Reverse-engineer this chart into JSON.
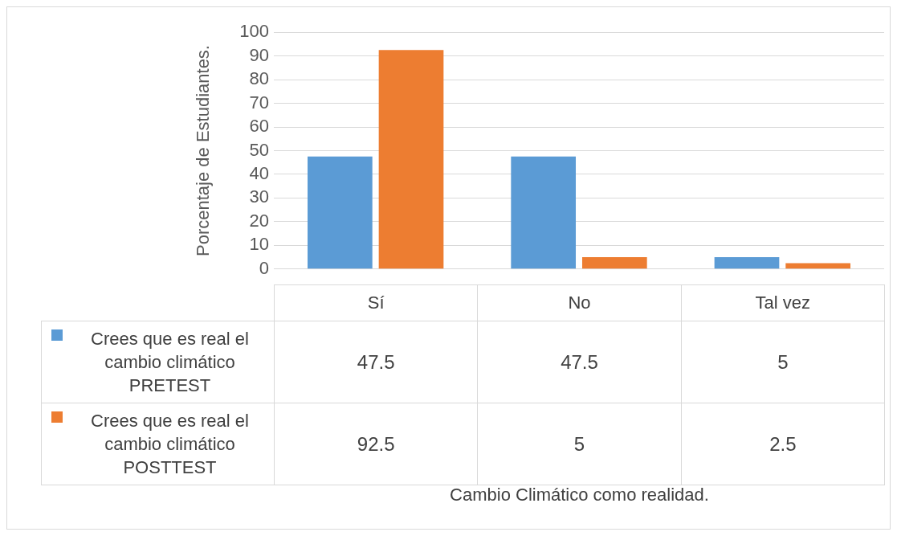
{
  "chart_data": {
    "type": "bar",
    "annotations": [
      "Cambio Climático como realidad."
    ],
    "ylabel": "Porcentaje de Estudiantes.",
    "categories": [
      "Sí",
      "No",
      "Tal vez"
    ],
    "series": [
      {
        "name": "Crees que es real el cambio climático PRETEST",
        "color": "#5b9bd5",
        "values": [
          47.5,
          47.5,
          5
        ]
      },
      {
        "name": "Crees que es real el cambio climático POSTTEST",
        "color": "#ed7d31",
        "values": [
          92.5,
          5,
          2.5
        ]
      }
    ],
    "ylim": [
      0,
      100
    ],
    "yticks": [
      0,
      10,
      20,
      30,
      40,
      50,
      60,
      70,
      80,
      90,
      100
    ],
    "grid": "y",
    "legend": "bottom",
    "data_labels": true
  }
}
